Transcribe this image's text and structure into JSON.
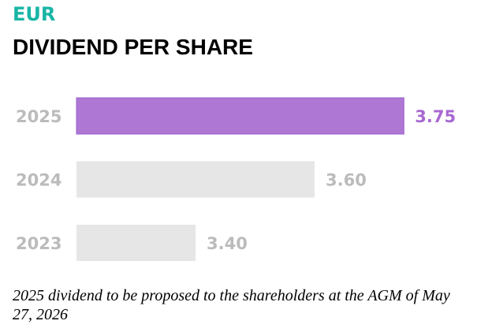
{
  "currency": "EUR",
  "chart_data": {
    "type": "bar",
    "orientation": "horizontal",
    "title": "DIVIDEND PER SHARE",
    "categories": [
      "2025",
      "2024",
      "2023"
    ],
    "values": [
      3.75,
      3.6,
      3.4
    ],
    "value_labels": [
      "3.75",
      "3.60",
      "3.40"
    ],
    "highlight": "2025",
    "colors": {
      "highlight": "#ae77d4",
      "highlight_label": "#a868d2",
      "default": "#e6e6e6",
      "label": "#bbbbbb"
    },
    "grid": false
  },
  "footnote": "2025 dividend to be proposed to the shareholders at the AGM of May 27, 2026"
}
